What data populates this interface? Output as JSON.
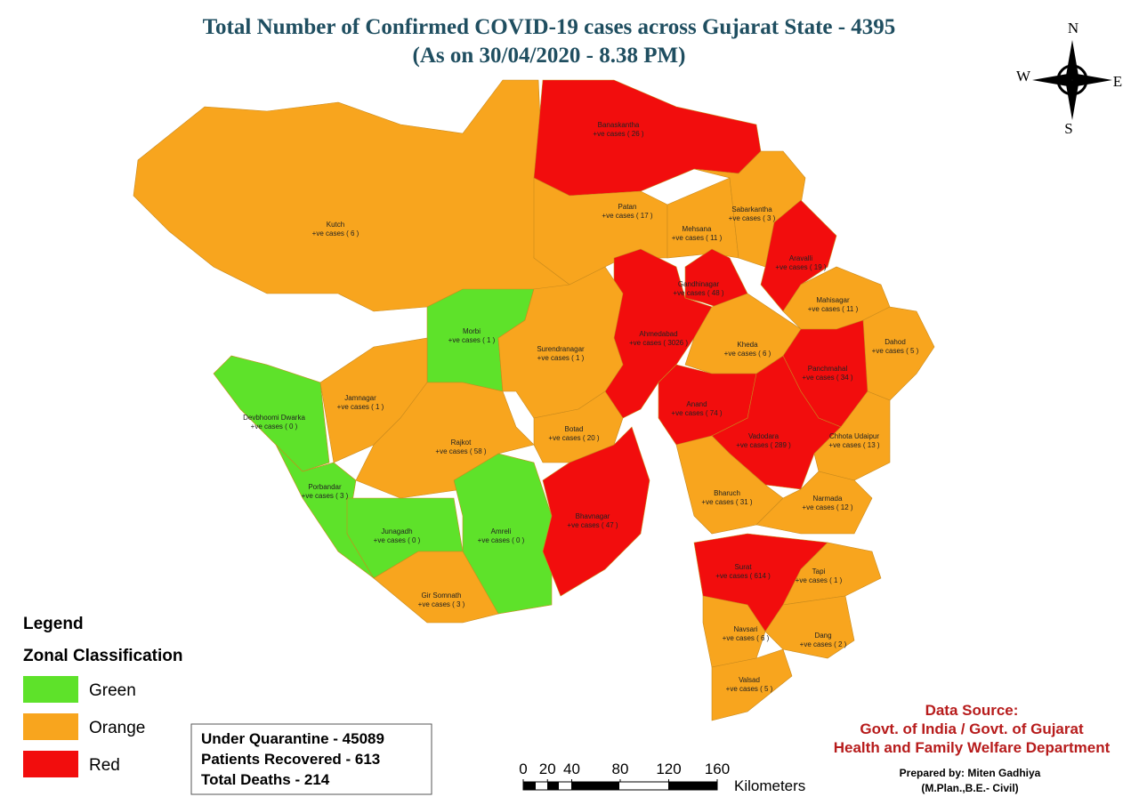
{
  "header": {
    "title": "Total Number of Confirmed COVID-19 cases across Gujarat State - 4395",
    "subtitle": "(As on 30/04/2020 - 8.38 PM)"
  },
  "compass": {
    "n": "N",
    "s": "S",
    "e": "E",
    "w": "W"
  },
  "districts": [
    {
      "name": "Kutch",
      "cases": "+ve cases ( 6 )"
    },
    {
      "name": "Banaskantha",
      "cases": "+ve cases ( 26 )"
    },
    {
      "name": "Patan",
      "cases": "+ve cases ( 17 )"
    },
    {
      "name": "Mehsana",
      "cases": "+ve cases ( 11 )"
    },
    {
      "name": "Sabarkantha",
      "cases": "+ve cases ( 3 )"
    },
    {
      "name": "Aravalli",
      "cases": "+ve cases ( 19 )"
    },
    {
      "name": "Gandhinagar",
      "cases": "+ve cases ( 48 )"
    },
    {
      "name": "Ahmedabad",
      "cases": "+ve cases ( 3026 )"
    },
    {
      "name": "Morbi",
      "cases": "+ve cases ( 1 )"
    },
    {
      "name": "Surendranagar",
      "cases": "+ve cases ( 1 )"
    },
    {
      "name": "Devbhoomi Dwarka",
      "cases": "+ve cases ( 0 )"
    },
    {
      "name": "Jamnagar",
      "cases": "+ve cases ( 1 )"
    },
    {
      "name": "Porbandar",
      "cases": "+ve cases ( 3 )"
    },
    {
      "name": "Rajkot",
      "cases": "+ve cases ( 58 )"
    },
    {
      "name": "Botad",
      "cases": "+ve cases ( 20 )"
    },
    {
      "name": "Junagadh",
      "cases": "+ve cases ( 0 )"
    },
    {
      "name": "Amreli",
      "cases": "+ve cases ( 0 )"
    },
    {
      "name": "Gir Somnath",
      "cases": "+ve cases ( 3 )"
    },
    {
      "name": "Bhavnagar",
      "cases": "+ve cases ( 47 )"
    },
    {
      "name": "Kheda",
      "cases": "+ve cases ( 6 )"
    },
    {
      "name": "Mahisagar",
      "cases": "+ve cases ( 11 )"
    },
    {
      "name": "Dahod",
      "cases": "+ve cases ( 5 )"
    },
    {
      "name": "Panchmahal",
      "cases": "+ve cases ( 34 )"
    },
    {
      "name": "Anand",
      "cases": "+ve cases ( 74 )"
    },
    {
      "name": "Vadodara",
      "cases": "+ve cases ( 289 )"
    },
    {
      "name": "Chhota Udaipur",
      "cases": "+ve cases ( 13 )"
    },
    {
      "name": "Bharuch",
      "cases": "+ve cases ( 31 )"
    },
    {
      "name": "Narmada",
      "cases": "+ve cases ( 12 )"
    },
    {
      "name": "Surat",
      "cases": "+ve cases ( 614 )"
    },
    {
      "name": "Tapi",
      "cases": "+ve cases ( 1 )"
    },
    {
      "name": "Navsari",
      "cases": "+ve cases ( 6 )"
    },
    {
      "name": "Dang",
      "cases": "+ve cases ( 2 )"
    },
    {
      "name": "Valsad",
      "cases": "+ve cases ( 5 )"
    }
  ],
  "legend": {
    "title": "Legend",
    "subtitle": "Zonal Classification",
    "items": [
      "Green",
      "Orange",
      "Red"
    ]
  },
  "stats": [
    "Under Quarantine - 45089",
    "Patients Recovered - 613",
    "Total Deaths - 214"
  ],
  "scale": {
    "ticks": [
      0,
      20,
      40,
      80,
      120,
      160
    ],
    "unit": "Kilometers"
  },
  "source": {
    "title": "Data Source:",
    "lines": [
      "Govt. of India / Govt. of Gujarat",
      "Health and Family Welfare Department"
    ]
  },
  "credit": {
    "lines": [
      "Prepared by: Miten Gadhiya",
      "(M.Plan.,B.E.- Civil)"
    ]
  }
}
